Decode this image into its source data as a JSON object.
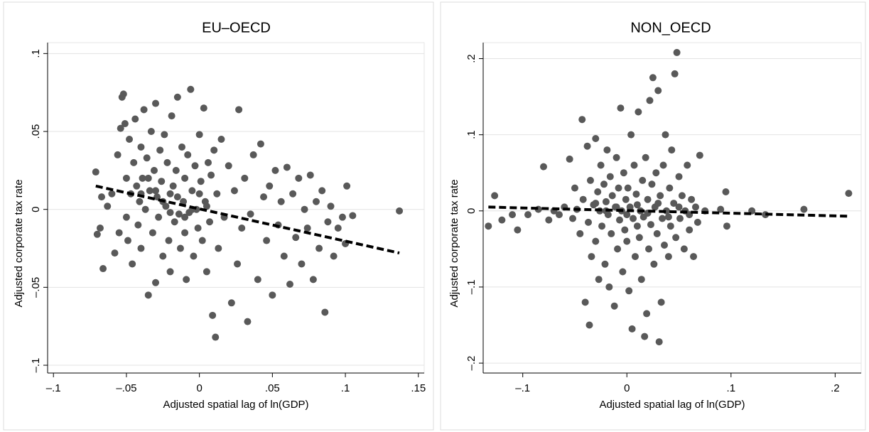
{
  "chart_data": [
    {
      "type": "scatter",
      "title": "EU–OECD",
      "xlabel": "Adjusted spatial lag of ln(GDP)",
      "ylabel": "Adjusted corporate tax rate",
      "xlim": [
        -0.104,
        0.154
      ],
      "ylim": [
        -0.105,
        0.107
      ],
      "xticks": [
        {
          "value": -0.1,
          "label": "–.1"
        },
        {
          "value": -0.05,
          "label": "–.05"
        },
        0,
        {
          "value": 0.05,
          "label": ".05"
        },
        {
          "value": 0.1,
          "label": ".1"
        },
        {
          "value": 0.15,
          "label": ".15"
        }
      ],
      "yticks": [
        {
          "value": -0.1,
          "label": "–.1"
        },
        {
          "value": -0.05,
          "label": "–.05"
        },
        0,
        {
          "value": 0.05,
          "label": ".05"
        },
        {
          "value": 0.1,
          "label": ".1"
        }
      ],
      "grid": true,
      "series": [
        {
          "color": "#595959",
          "x": [
            -0.071,
            -0.07,
            -0.068,
            -0.067,
            -0.066,
            -0.063,
            -0.06,
            -0.058,
            -0.056,
            -0.055,
            -0.054,
            -0.053,
            -0.052,
            -0.051,
            -0.05,
            -0.05,
            -0.049,
            -0.048,
            -0.047,
            -0.046,
            -0.045,
            -0.044,
            -0.043,
            -0.042,
            -0.041,
            -0.04,
            -0.04,
            -0.039,
            -0.038,
            -0.037,
            -0.036,
            -0.035,
            -0.034,
            -0.033,
            -0.032,
            -0.031,
            -0.03,
            -0.03,
            -0.029,
            -0.028,
            -0.027,
            -0.026,
            -0.025,
            -0.024,
            -0.023,
            -0.022,
            -0.021,
            -0.02,
            -0.02,
            -0.019,
            -0.018,
            -0.017,
            -0.016,
            -0.015,
            -0.014,
            -0.013,
            -0.012,
            -0.011,
            -0.01,
            -0.01,
            -0.009,
            -0.008,
            -0.007,
            -0.006,
            -0.005,
            -0.004,
            -0.003,
            -0.002,
            -0.001,
            0,
            0.001,
            0.002,
            0.003,
            0.004,
            0.005,
            0.006,
            0.007,
            0.008,
            0.009,
            0.01,
            0.011,
            0.012,
            0.013,
            0.015,
            0.017,
            0.02,
            0.022,
            0.024,
            0.026,
            0.027,
            0.029,
            0.031,
            0.033,
            0.035,
            0.037,
            0.04,
            0.042,
            0.044,
            0.046,
            0.048,
            0.05,
            0.052,
            0.054,
            0.056,
            0.058,
            0.06,
            0.062,
            0.064,
            0.066,
            0.068,
            0.07,
            0.072,
            0.074,
            0.076,
            0.078,
            0.08,
            0.082,
            0.084,
            0.086,
            0.088,
            0.09,
            0.092,
            0.095,
            0.098,
            0.1,
            0.101,
            0.105,
            0.137,
            -0.03,
            -0.025,
            -0.02,
            -0.015,
            -0.01,
            -0.005,
            0,
            0.005,
            -0.035,
            -0.04
          ],
          "values": [
            0.024,
            -0.016,
            -0.012,
            0.008,
            -0.038,
            0.002,
            0.01,
            -0.028,
            0.035,
            -0.015,
            0.052,
            0.072,
            0.074,
            0.055,
            0.02,
            -0.005,
            -0.02,
            0.045,
            0.01,
            -0.035,
            0.03,
            0.058,
            0.015,
            -0.01,
            0.005,
            0.04,
            -0.025,
            0.02,
            0.064,
            0,
            0.033,
            -0.055,
            0.012,
            0.05,
            -0.015,
            0.025,
            0.068,
            -0.047,
            0.008,
            -0.005,
            0.038,
            0.018,
            -0.03,
            0.048,
            0.002,
            0.03,
            -0.02,
            0.01,
            -0.04,
            0.06,
            0.015,
            -0.008,
            0.025,
            0.072,
            -0.003,
            -0.025,
            0.04,
            0.005,
            -0.015,
            0.02,
            -0.045,
            0.035,
            -0.002,
            0.077,
            0.012,
            -0.03,
            0.028,
            0,
            -0.012,
            0.048,
            0.018,
            -0.02,
            0.065,
            0.005,
            -0.04,
            0.03,
            -0.008,
            0.022,
            -0.068,
            0.038,
            -0.082,
            0.01,
            -0.025,
            0.045,
            -0.005,
            0.028,
            -0.06,
            0.012,
            -0.035,
            0.064,
            -0.012,
            0.02,
            -0.072,
            -0.003,
            0.035,
            -0.045,
            0.042,
            0.008,
            -0.02,
            0.015,
            -0.055,
            0.025,
            -0.01,
            0.005,
            -0.03,
            0.027,
            -0.048,
            0.01,
            -0.018,
            0.02,
            -0.035,
            0,
            -0.012,
            0.022,
            -0.045,
            0.005,
            -0.025,
            0.012,
            -0.066,
            -0.008,
            0.002,
            -0.03,
            -0.012,
            -0.005,
            -0.022,
            0.015,
            -0.004,
            -0.001,
            0.012,
            0.005,
            -0.002,
            0.008,
            -0.005,
            0,
            0.01,
            0.002,
            0.02,
            0.01
          ]
        }
      ],
      "fit": {
        "color": "#000000",
        "x": [
          -0.071,
          0.137
        ],
        "values": [
          0.015,
          -0.028
        ]
      }
    },
    {
      "type": "scatter",
      "title": "NON_OECD",
      "xlabel": "Adjusted spatial lag of ln(GDP)",
      "ylabel": "Adjusted corporate tax rate",
      "xlim": [
        -0.138,
        0.225
      ],
      "ylim": [
        -0.213,
        0.221
      ],
      "xticks": [
        {
          "value": -0.1,
          "label": "–.1"
        },
        0,
        {
          "value": 0.1,
          "label": ".1"
        },
        {
          "value": 0.2,
          "label": ".2"
        }
      ],
      "yticks": [
        {
          "value": -0.2,
          "label": "–.2"
        },
        {
          "value": -0.1,
          "label": "–.1"
        },
        0,
        {
          "value": 0.1,
          "label": ".1"
        },
        {
          "value": 0.2,
          "label": ".2"
        }
      ],
      "grid": true,
      "series": [
        {
          "color": "#595959",
          "x": [
            -0.133,
            -0.127,
            -0.12,
            -0.11,
            -0.105,
            -0.095,
            -0.085,
            -0.08,
            -0.075,
            -0.07,
            -0.065,
            -0.06,
            -0.055,
            -0.052,
            -0.05,
            -0.048,
            -0.045,
            -0.043,
            -0.042,
            -0.04,
            -0.038,
            -0.037,
            -0.036,
            -0.035,
            -0.034,
            -0.032,
            -0.03,
            -0.03,
            -0.028,
            -0.027,
            -0.026,
            -0.025,
            -0.024,
            -0.022,
            -0.021,
            -0.02,
            -0.019,
            -0.018,
            -0.017,
            -0.016,
            -0.015,
            -0.014,
            -0.012,
            -0.011,
            -0.01,
            -0.009,
            -0.008,
            -0.007,
            -0.006,
            -0.005,
            -0.004,
            -0.003,
            -0.002,
            -0.001,
            0,
            0.001,
            0.002,
            0.003,
            0.004,
            0.005,
            0.006,
            0.007,
            0.008,
            0.009,
            0.01,
            0.011,
            0.012,
            0.013,
            0.014,
            0.015,
            0.016,
            0.017,
            0.018,
            0.019,
            0.02,
            0.021,
            0.022,
            0.023,
            0.024,
            0.025,
            0.026,
            0.027,
            0.028,
            0.029,
            0.03,
            0.031,
            0.032,
            0.033,
            0.034,
            0.035,
            0.036,
            0.037,
            0.038,
            0.04,
            0.041,
            0.042,
            0.043,
            0.045,
            0.046,
            0.047,
            0.048,
            0.05,
            0.051,
            0.053,
            0.055,
            0.056,
            0.058,
            0.06,
            0.062,
            0.064,
            0.066,
            0.068,
            0.07,
            0.075,
            0.09,
            0.095,
            0.096,
            0.12,
            0.133,
            0.17,
            0.213,
            -0.02,
            -0.01,
            0,
            0.01,
            0.02,
            0.03,
            0.04,
            -0.03,
            0.05,
            0.06
          ],
          "values": [
            -0.02,
            0.02,
            -0.012,
            -0.005,
            -0.025,
            -0.005,
            0.002,
            0.058,
            -0.012,
            0,
            -0.005,
            0.005,
            0.068,
            -0.01,
            0.03,
            0.002,
            -0.03,
            0.12,
            0.015,
            -0.12,
            0.085,
            -0.015,
            -0.15,
            0.04,
            -0.06,
            0.008,
            0.095,
            -0.04,
            0.025,
            -0.09,
            0,
            0.06,
            -0.02,
            0.035,
            -0.07,
            0.012,
            0.08,
            -0.005,
            -0.1,
            0.045,
            -0.03,
            0.02,
            -0.125,
            0.005,
            0.07,
            -0.05,
            0.03,
            -0.012,
            0.135,
            0,
            -0.08,
            0.05,
            -0.025,
            0.015,
            -0.04,
            0.03,
            -0.105,
            0.005,
            0.1,
            -0.155,
            -0.01,
            0.06,
            -0.06,
            0.022,
            -0.02,
            0.13,
            -0.035,
            0,
            -0.09,
            0.04,
            -0.008,
            -0.165,
            0.07,
            -0.135,
            0.015,
            -0.05,
            0.145,
            -0.018,
            0.035,
            0.175,
            -0.07,
            0.005,
            0.05,
            -0.03,
            0.158,
            -0.172,
            0.02,
            -0.12,
            -0.01,
            0.06,
            -0.045,
            0.1,
            0,
            -0.06,
            0.03,
            -0.02,
            0.08,
            0.01,
            0.18,
            -0.035,
            0.208,
            0.045,
            -0.01,
            0.02,
            -0.05,
            0,
            0.06,
            -0.025,
            0.015,
            -0.06,
            0.005,
            -0.015,
            0.073,
            0,
            0.002,
            0.025,
            -0.02,
            0,
            -0.005,
            0.002,
            0.023,
            0,
            0.005,
            -0.005,
            0.008,
            -0.003,
            0.01,
            -0.008,
            0.01,
            0.005,
            -0.005
          ]
        }
      ],
      "fit": {
        "color": "#000000",
        "x": [
          -0.133,
          0.213
        ],
        "values": [
          0.005,
          -0.007
        ]
      }
    }
  ]
}
